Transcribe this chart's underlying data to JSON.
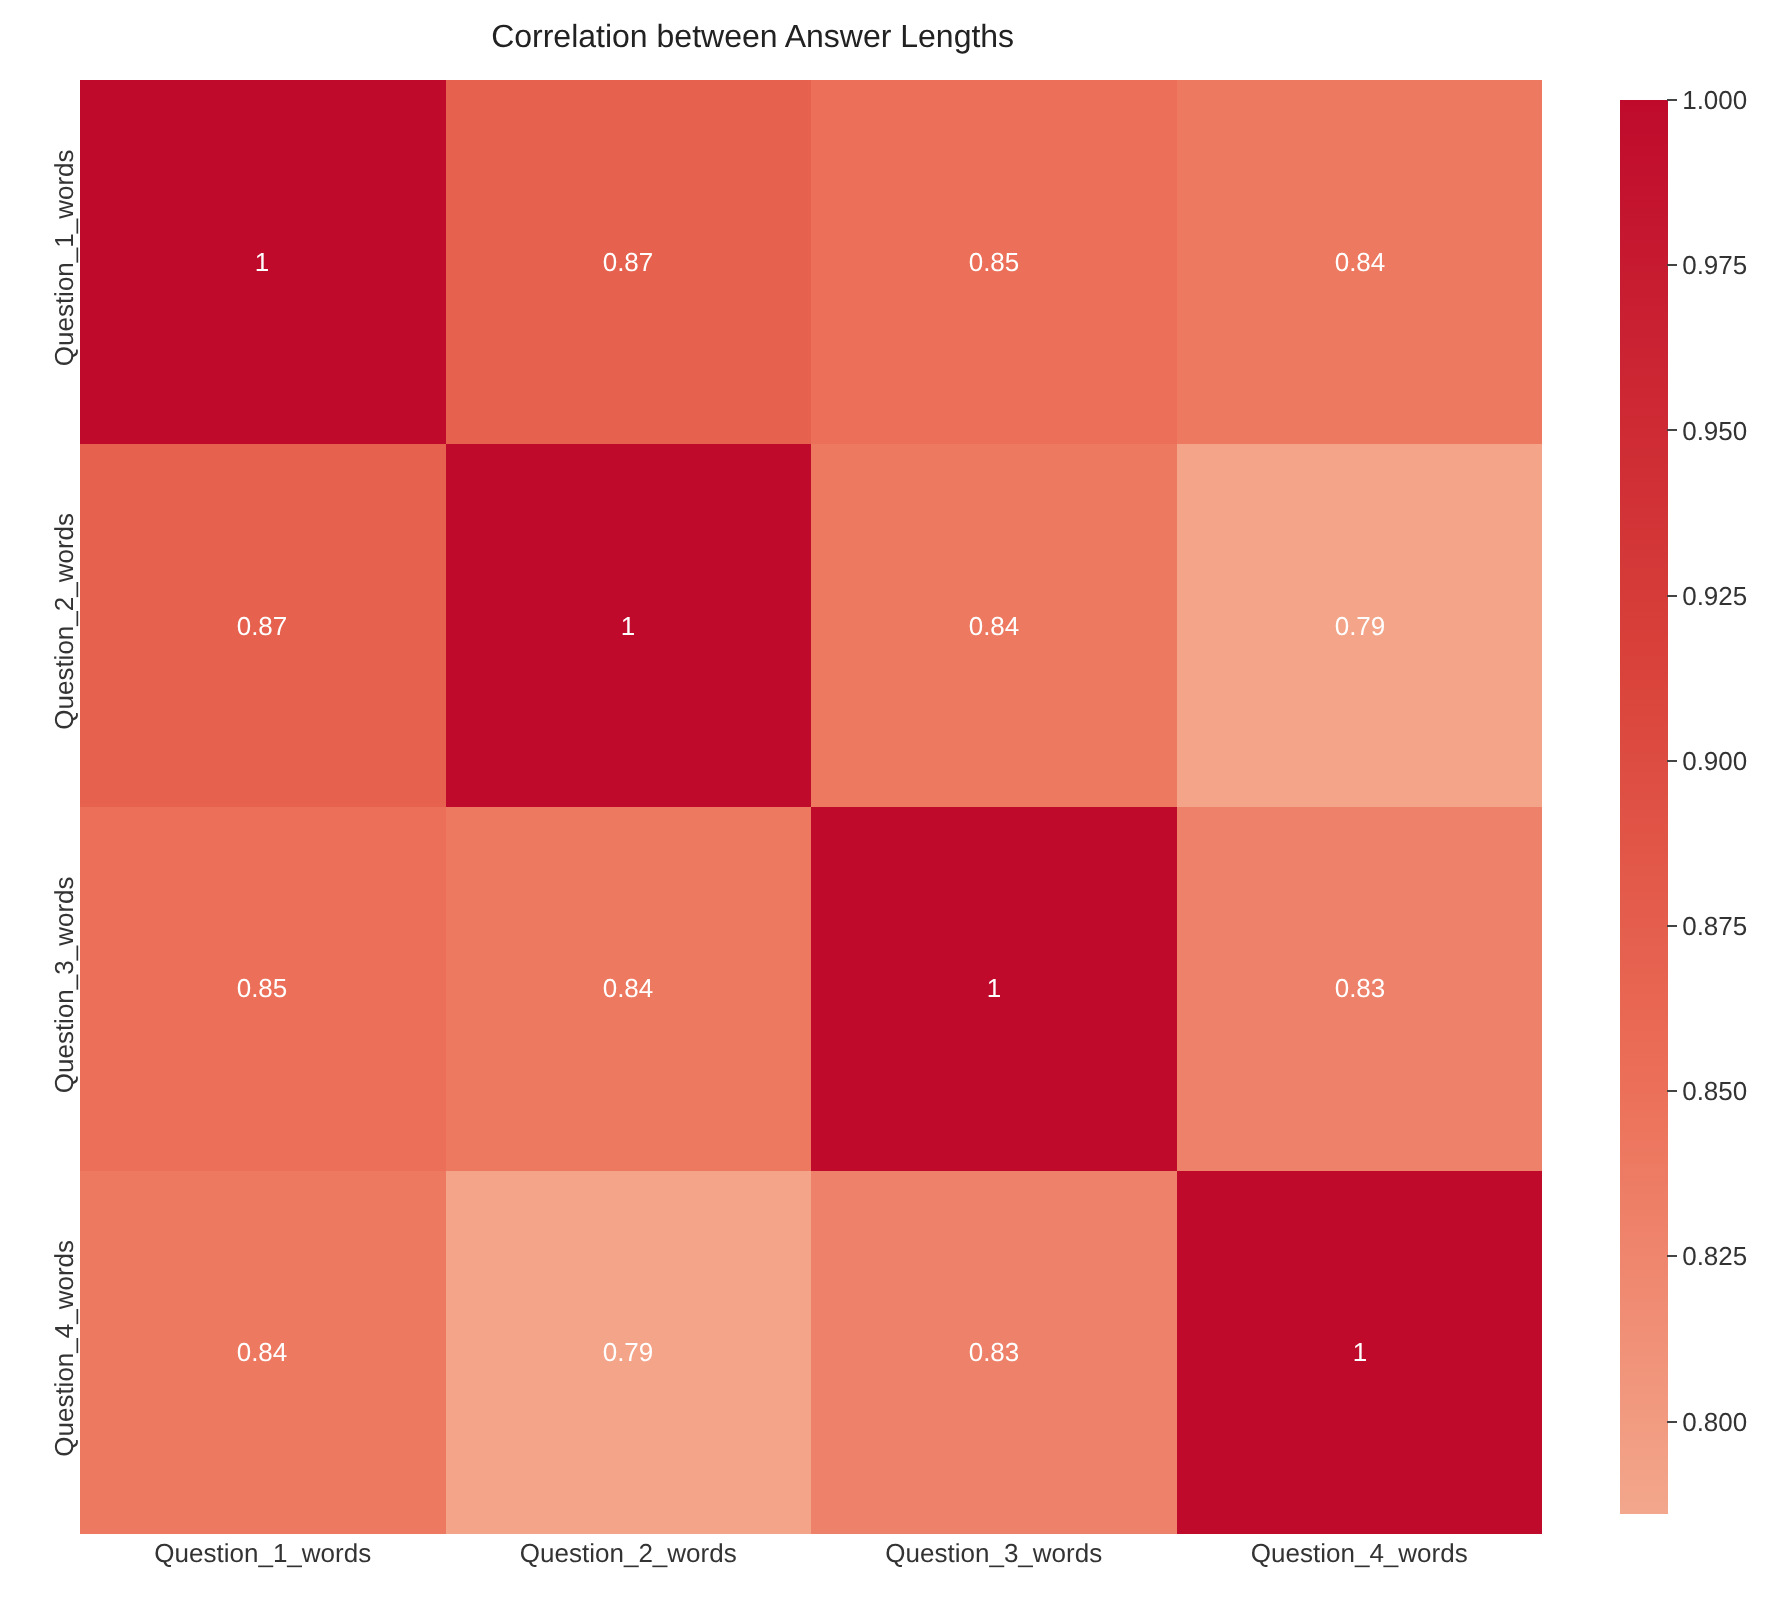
{
  "chart_data": {
    "type": "heatmap",
    "title": "Correlation between Answer Lengths",
    "categories": [
      "Question_1_words",
      "Question_2_words",
      "Question_3_words",
      "Question_4_words"
    ],
    "y_categories": [
      "Question_1_words",
      "Question_2_words",
      "Question_3_words",
      "Question_4_words"
    ],
    "cells": [
      [
        1,
        0.87,
        0.85,
        0.84
      ],
      [
        0.87,
        1,
        0.84,
        0.79
      ],
      [
        0.85,
        0.84,
        1,
        0.83
      ],
      [
        0.84,
        0.79,
        0.83,
        1
      ]
    ],
    "data_labels": true,
    "clim": [
      0.786,
      1.0
    ],
    "cticks": [
      {
        "value": 0.8,
        "label": "0.800"
      },
      {
        "value": 0.825,
        "label": "0.825"
      },
      {
        "value": 0.85,
        "label": "0.850"
      },
      {
        "value": 0.875,
        "label": "0.875"
      },
      {
        "value": 0.9,
        "label": "0.900"
      },
      {
        "value": 0.925,
        "label": "0.925"
      },
      {
        "value": 0.95,
        "label": "0.950"
      },
      {
        "value": 0.975,
        "label": "0.975"
      },
      {
        "value": 1.0,
        "label": "1.000"
      }
    ]
  }
}
